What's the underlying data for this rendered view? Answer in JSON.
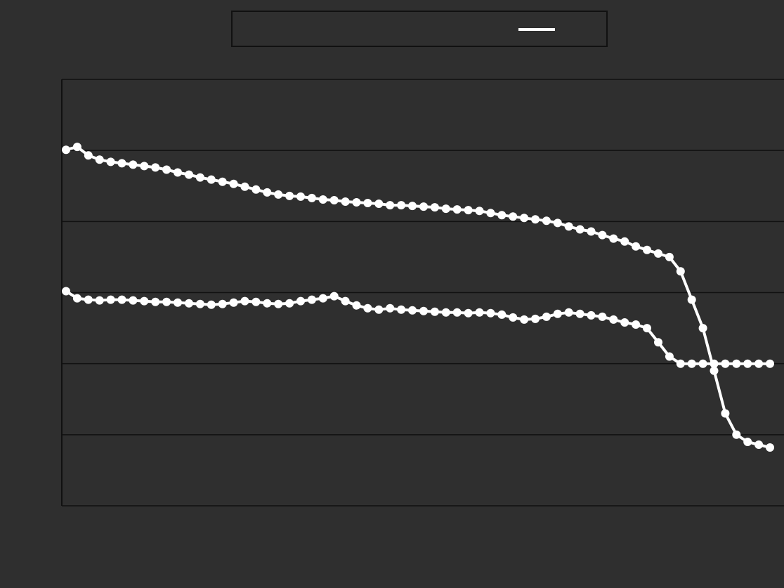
{
  "chart_data": {
    "type": "line",
    "legend": {
      "placement": "top-center",
      "entries": [
        "",
        ""
      ]
    },
    "xlabel": "",
    "ylabel": "",
    "x": [
      1,
      2,
      3,
      4,
      5,
      6,
      7,
      8,
      9,
      10,
      11,
      12,
      13,
      14,
      15,
      16,
      17,
      18,
      19,
      20,
      21,
      22,
      23,
      24,
      25,
      26,
      27,
      28,
      29,
      30,
      31,
      32,
      33,
      34,
      35,
      36,
      37,
      38,
      39,
      40,
      41,
      42,
      43,
      44,
      45,
      46,
      47,
      48,
      49,
      50,
      51,
      52,
      53,
      54,
      55,
      56,
      57,
      58,
      59,
      60,
      61,
      62,
      63,
      64
    ],
    "x_tick_labels": [
      "",
      "",
      "",
      "",
      "",
      "",
      "",
      "",
      "",
      "",
      "",
      "",
      "",
      "",
      "",
      "",
      "",
      "",
      "",
      "",
      "",
      "",
      "",
      "",
      "",
      "",
      "",
      "",
      "",
      "",
      "",
      "",
      ""
    ],
    "ylim": [
      0,
      6
    ],
    "y_ticks": [
      0,
      1,
      2,
      3,
      4,
      5,
      6
    ],
    "y_tick_labels": [
      "",
      "",
      "",
      "",
      "",
      "",
      ""
    ],
    "grid": true,
    "series": [
      {
        "values": [
          5.01,
          5.05,
          4.93,
          4.87,
          4.84,
          4.82,
          4.8,
          4.78,
          4.76,
          4.73,
          4.69,
          4.66,
          4.62,
          4.59,
          4.56,
          4.53,
          4.49,
          4.45,
          4.41,
          4.38,
          4.36,
          4.35,
          4.33,
          4.31,
          4.3,
          4.28,
          4.27,
          4.26,
          4.25,
          4.23,
          4.23,
          4.22,
          4.21,
          4.2,
          4.18,
          4.17,
          4.16,
          4.15,
          4.12,
          4.09,
          4.07,
          4.05,
          4.03,
          4.01,
          3.98,
          3.93,
          3.89,
          3.86,
          3.81,
          3.76,
          3.72,
          3.65,
          3.6,
          3.55,
          3.5,
          3.3,
          2.9,
          2.5,
          1.9,
          1.3,
          1.0,
          0.9,
          0.86,
          0.82
        ]
      },
      {
        "values": [
          3.02,
          2.92,
          2.9,
          2.89,
          2.9,
          2.9,
          2.89,
          2.88,
          2.87,
          2.87,
          2.86,
          2.85,
          2.84,
          2.83,
          2.84,
          2.86,
          2.88,
          2.87,
          2.85,
          2.84,
          2.85,
          2.88,
          2.9,
          2.92,
          2.95,
          2.88,
          2.82,
          2.78,
          2.76,
          2.78,
          2.76,
          2.75,
          2.74,
          2.73,
          2.72,
          2.72,
          2.71,
          2.72,
          2.71,
          2.69,
          2.65,
          2.62,
          2.63,
          2.66,
          2.7,
          2.72,
          2.7,
          2.68,
          2.66,
          2.62,
          2.58,
          2.55,
          2.5,
          2.3,
          2.1,
          2.0,
          2.0,
          2.0,
          2.0,
          2.0,
          2.0,
          2.0,
          2.0,
          2.0
        ]
      }
    ]
  },
  "colors": {
    "background": "#2f2f2f",
    "lines": "#ffffff",
    "grid": "#111111"
  }
}
